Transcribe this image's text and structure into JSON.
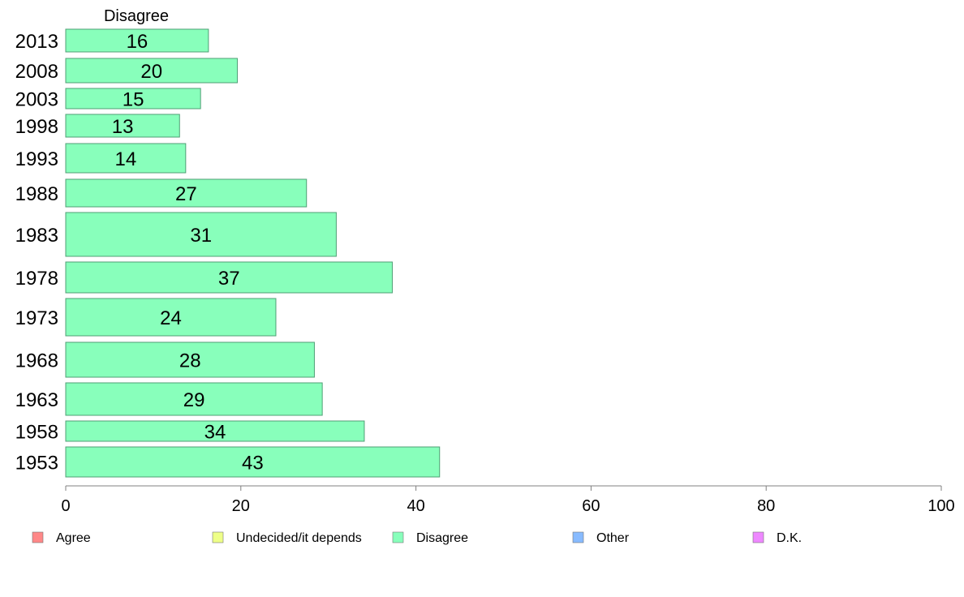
{
  "chart_data": {
    "type": "bar",
    "orientation": "horizontal",
    "series_title": "Disagree",
    "categories": [
      "2013",
      "2008",
      "2003",
      "1998",
      "1993",
      "1988",
      "1983",
      "1978",
      "1973",
      "1968",
      "1963",
      "1958",
      "1953"
    ],
    "series": [
      {
        "name": "Disagree",
        "values": [
          16.3,
          19.6,
          15.4,
          13.0,
          13.7,
          27.5,
          30.9,
          37.3,
          24.0,
          28.4,
          29.3,
          34.1,
          42.7
        ],
        "labels": [
          "16",
          "20",
          "15",
          "13",
          "14",
          "27",
          "31",
          "37",
          "24",
          "28",
          "29",
          "34",
          "43"
        ],
        "color": "#88ffbb"
      }
    ],
    "xlim": [
      0,
      100
    ],
    "xticks": [
      "0",
      "20",
      "40",
      "60",
      "80",
      "100"
    ],
    "grid": false,
    "legend": {
      "placement": "bottom",
      "items": [
        {
          "label": "Agree",
          "color": "#ff8888"
        },
        {
          "label": "Undecided/it depends",
          "color": "#eeff88"
        },
        {
          "label": "Disagree",
          "color": "#88ffbb"
        },
        {
          "label": "Other",
          "color": "#88bbff"
        },
        {
          "label": "D.K.",
          "color": "#ee88ff"
        }
      ]
    }
  }
}
